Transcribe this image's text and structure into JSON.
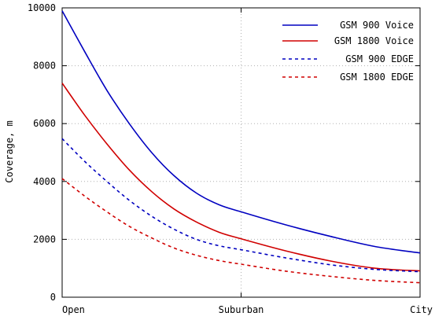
{
  "chart_data": {
    "type": "line",
    "title": "",
    "xlabel": "",
    "ylabel": "Coverage, m",
    "categories": [
      "Open",
      "Suburban",
      "City"
    ],
    "x": [
      0,
      1,
      2
    ],
    "xlim": [
      0,
      2
    ],
    "ylim": [
      0,
      10000
    ],
    "yticks": [
      0,
      2000,
      4000,
      6000,
      8000,
      10000
    ],
    "grid": true,
    "legend": "top-right",
    "series": [
      {
        "name": "GSM 900 Voice",
        "color": "#0000c0",
        "style": "solid",
        "points": [
          [
            0,
            9900
          ],
          [
            0.125,
            8500
          ],
          [
            0.25,
            7150
          ],
          [
            0.375,
            6000
          ],
          [
            0.5,
            5000
          ],
          [
            0.625,
            4200
          ],
          [
            0.75,
            3600
          ],
          [
            0.875,
            3200
          ],
          [
            1,
            2950
          ],
          [
            1.25,
            2500
          ],
          [
            1.5,
            2100
          ],
          [
            1.75,
            1750
          ],
          [
            2,
            1530
          ]
        ]
      },
      {
        "name": "GSM 1800 Voice",
        "color": "#d00000",
        "style": "solid",
        "points": [
          [
            0,
            7400
          ],
          [
            0.125,
            6300
          ],
          [
            0.25,
            5300
          ],
          [
            0.375,
            4400
          ],
          [
            0.5,
            3650
          ],
          [
            0.625,
            3050
          ],
          [
            0.75,
            2600
          ],
          [
            0.875,
            2250
          ],
          [
            1,
            2020
          ],
          [
            1.25,
            1600
          ],
          [
            1.5,
            1250
          ],
          [
            1.75,
            1000
          ],
          [
            2,
            910
          ]
        ]
      },
      {
        "name": "GSM 900 EDGE",
        "color": "#0000c0",
        "style": "dashed",
        "points": [
          [
            0,
            5480
          ],
          [
            0.125,
            4700
          ],
          [
            0.25,
            4000
          ],
          [
            0.375,
            3350
          ],
          [
            0.5,
            2800
          ],
          [
            0.625,
            2350
          ],
          [
            0.75,
            2000
          ],
          [
            0.875,
            1780
          ],
          [
            1,
            1640
          ],
          [
            1.25,
            1360
          ],
          [
            1.5,
            1120
          ],
          [
            1.75,
            960
          ],
          [
            2,
            880
          ]
        ]
      },
      {
        "name": "GSM 1800 EDGE",
        "color": "#d00000",
        "style": "dashed",
        "points": [
          [
            0,
            4100
          ],
          [
            0.125,
            3500
          ],
          [
            0.25,
            2950
          ],
          [
            0.375,
            2450
          ],
          [
            0.5,
            2050
          ],
          [
            0.625,
            1700
          ],
          [
            0.75,
            1450
          ],
          [
            0.875,
            1270
          ],
          [
            1,
            1140
          ],
          [
            1.25,
            900
          ],
          [
            1.5,
            720
          ],
          [
            1.75,
            580
          ],
          [
            2,
            500
          ]
        ]
      }
    ]
  }
}
